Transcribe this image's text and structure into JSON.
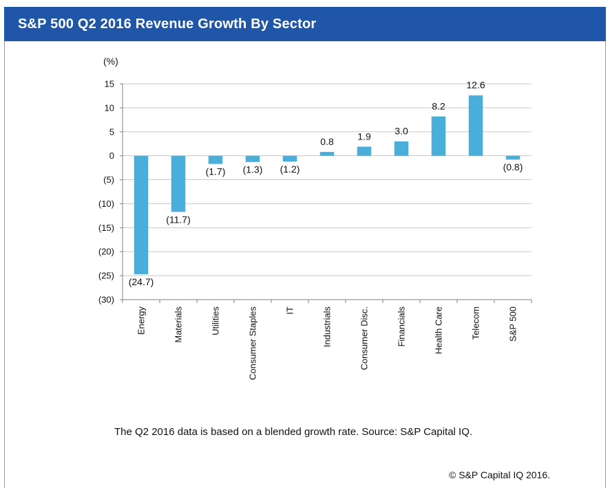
{
  "header": {
    "title": "S&P 500 Q2 2016 Revenue Growth By Sector"
  },
  "footnote": "The Q2 2016 data is based on a blended growth rate. Source: S&P  Capital IQ.",
  "copyright": "©  S&P Capital IQ 2016.",
  "colors": {
    "header_bg": "#1f56a8",
    "bar": "#4aaedb",
    "grid": "#c8c8c8"
  },
  "chart_data": {
    "type": "bar",
    "title": "S&P 500 Q2 2016 Revenue Growth By Sector",
    "ylabel": "(%)",
    "xlabel": "",
    "ylim": [
      -30,
      15
    ],
    "grid": true,
    "yticks": [
      15,
      10,
      5,
      0,
      -5,
      -10,
      -15,
      -20,
      -25,
      -30
    ],
    "ytick_labels": [
      "15",
      "10",
      "5",
      "0",
      "(5)",
      "(10)",
      "(15)",
      "(20)",
      "(25)",
      "(30)"
    ],
    "categories": [
      "Energy",
      "Materials",
      "Utilities",
      "Consumer Staples",
      "IT",
      "Industrials",
      "Consumer Disc.",
      "Financials",
      "Health Care",
      "Telecom",
      "S&P 500"
    ],
    "values": [
      -24.7,
      -11.7,
      -1.7,
      -1.3,
      -1.2,
      0.8,
      1.9,
      3.0,
      8.2,
      12.6,
      -0.8
    ],
    "value_labels": [
      "(24.7)",
      "(11.7)",
      "(1.7)",
      "(1.3)",
      "(1.2)",
      "0.8",
      "1.9",
      "3.0",
      "8.2",
      "12.6",
      "(0.8)"
    ]
  }
}
